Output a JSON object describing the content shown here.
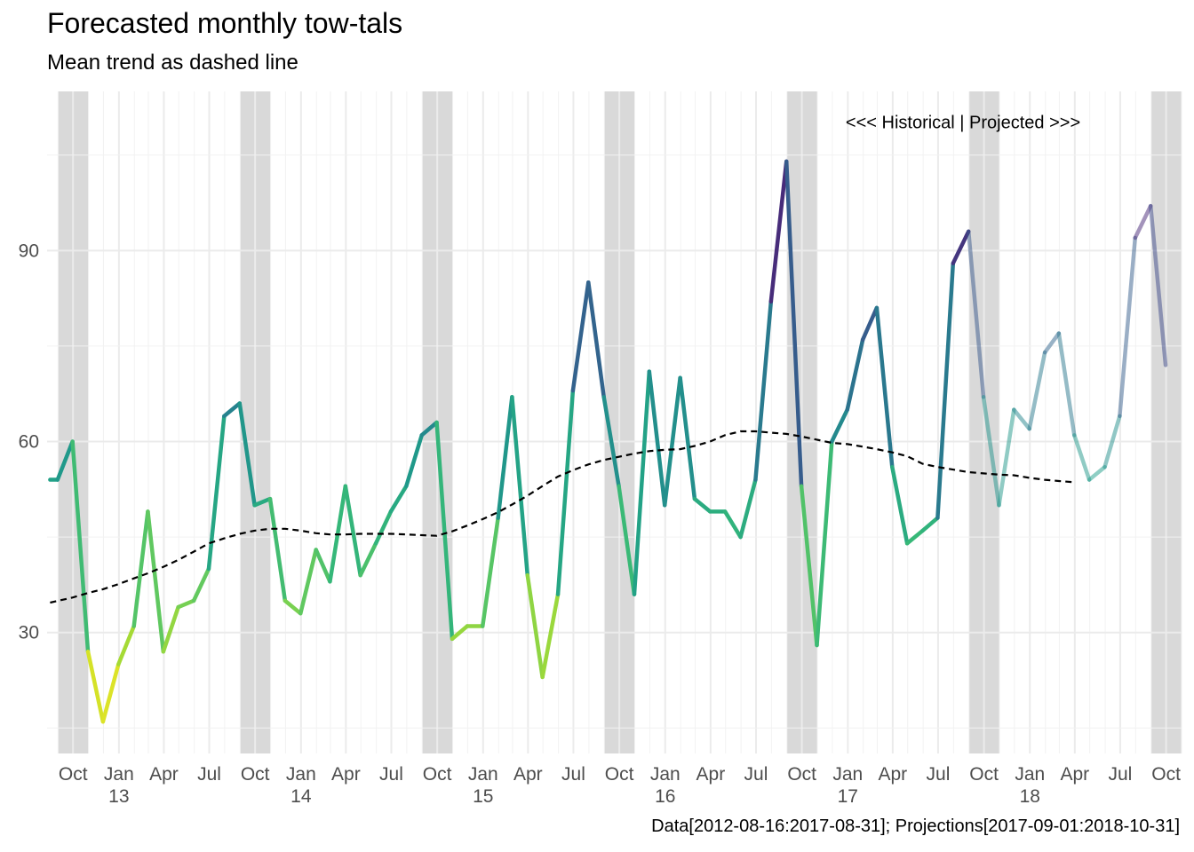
{
  "chart_data": {
    "type": "line",
    "title": "Forecasted monthly tow-tals",
    "subtitle": "Mean trend as dashed line",
    "caption": "Data[2012-08-16:2017-08-31]; Projections[2017-09-01:2018-10-31]",
    "annotation": "<<< Historical | Projected >>>",
    "ylim": [
      11,
      115
    ],
    "y_ticks": [
      30,
      60,
      90
    ],
    "xlim": [
      "2012-08-10",
      "2018-11-01"
    ],
    "x_ticks": [
      {
        "date": "2012-10-01",
        "label": "Oct"
      },
      {
        "date": "2013-01-01",
        "label": "Jan\n13"
      },
      {
        "date": "2013-04-01",
        "label": "Apr"
      },
      {
        "date": "2013-07-01",
        "label": "Jul"
      },
      {
        "date": "2013-10-01",
        "label": "Oct"
      },
      {
        "date": "2014-01-01",
        "label": "Jan\n14"
      },
      {
        "date": "2014-04-01",
        "label": "Apr"
      },
      {
        "date": "2014-07-01",
        "label": "Jul"
      },
      {
        "date": "2014-10-01",
        "label": "Oct"
      },
      {
        "date": "2015-01-01",
        "label": "Jan\n15"
      },
      {
        "date": "2015-04-01",
        "label": "Apr"
      },
      {
        "date": "2015-07-01",
        "label": "Jul"
      },
      {
        "date": "2015-10-01",
        "label": "Oct"
      },
      {
        "date": "2016-01-01",
        "label": "Jan\n16"
      },
      {
        "date": "2016-04-01",
        "label": "Apr"
      },
      {
        "date": "2016-07-01",
        "label": "Jul"
      },
      {
        "date": "2016-10-01",
        "label": "Oct"
      },
      {
        "date": "2017-01-01",
        "label": "Jan\n17"
      },
      {
        "date": "2017-04-01",
        "label": "Apr"
      },
      {
        "date": "2017-07-01",
        "label": "Jul"
      },
      {
        "date": "2017-10-01",
        "label": "Oct"
      },
      {
        "date": "2018-01-01",
        "label": "Jan\n18"
      },
      {
        "date": "2018-04-01",
        "label": "Apr"
      },
      {
        "date": "2018-07-01",
        "label": "Jul"
      },
      {
        "date": "2018-10-01",
        "label": "Oct"
      }
    ],
    "shaded_periods": [
      [
        "2012-09-01",
        "2012-11-01"
      ],
      [
        "2013-09-01",
        "2013-11-01"
      ],
      [
        "2014-09-01",
        "2014-11-01"
      ],
      [
        "2015-09-01",
        "2015-11-01"
      ],
      [
        "2016-09-01",
        "2016-11-01"
      ],
      [
        "2017-09-01",
        "2017-11-01"
      ],
      [
        "2018-09-01",
        "2018-11-01"
      ]
    ],
    "projection_start": "2017-09-01",
    "color_scale": "viridis (high values dark purple, low values yellow)",
    "series": [
      {
        "style": "solid, colored by value",
        "points": [
          [
            "2012-08-16",
            54
          ],
          [
            "2012-08-31",
            54
          ],
          [
            "2012-09-30",
            60
          ],
          [
            "2012-10-31",
            27
          ],
          [
            "2012-11-30",
            16
          ],
          [
            "2012-12-31",
            25
          ],
          [
            "2013-01-31",
            31
          ],
          [
            "2013-02-28",
            49
          ],
          [
            "2013-03-31",
            27
          ],
          [
            "2013-04-30",
            34
          ],
          [
            "2013-05-31",
            35
          ],
          [
            "2013-06-30",
            40
          ],
          [
            "2013-07-31",
            64
          ],
          [
            "2013-08-31",
            66
          ],
          [
            "2013-09-30",
            50
          ],
          [
            "2013-10-31",
            51
          ],
          [
            "2013-11-30",
            35
          ],
          [
            "2013-12-31",
            33
          ],
          [
            "2014-01-31",
            43
          ],
          [
            "2014-02-28",
            38
          ],
          [
            "2014-03-31",
            53
          ],
          [
            "2014-04-30",
            39
          ],
          [
            "2014-05-31",
            44
          ],
          [
            "2014-06-30",
            49
          ],
          [
            "2014-07-31",
            53
          ],
          [
            "2014-08-31",
            61
          ],
          [
            "2014-09-30",
            63
          ],
          [
            "2014-10-31",
            29
          ],
          [
            "2014-11-30",
            31
          ],
          [
            "2014-12-31",
            31
          ],
          [
            "2015-01-31",
            48
          ],
          [
            "2015-02-28",
            67
          ],
          [
            "2015-03-31",
            39
          ],
          [
            "2015-04-30",
            23
          ],
          [
            "2015-05-31",
            36
          ],
          [
            "2015-06-30",
            68
          ],
          [
            "2015-07-31",
            85
          ],
          [
            "2015-08-31",
            67
          ],
          [
            "2015-09-30",
            53
          ],
          [
            "2015-10-31",
            36
          ],
          [
            "2015-11-30",
            71
          ],
          [
            "2015-12-31",
            50
          ],
          [
            "2016-01-31",
            70
          ],
          [
            "2016-02-29",
            51
          ],
          [
            "2016-03-31",
            49
          ],
          [
            "2016-04-30",
            49
          ],
          [
            "2016-05-31",
            45
          ],
          [
            "2016-06-30",
            54
          ],
          [
            "2016-07-31",
            82
          ],
          [
            "2016-08-31",
            104
          ],
          [
            "2016-09-30",
            53
          ],
          [
            "2016-10-31",
            28
          ],
          [
            "2016-11-30",
            60
          ],
          [
            "2016-12-31",
            65
          ],
          [
            "2017-01-31",
            76
          ],
          [
            "2017-02-28",
            81
          ],
          [
            "2017-03-31",
            56
          ],
          [
            "2017-04-30",
            44
          ],
          [
            "2017-05-31",
            46
          ],
          [
            "2017-06-30",
            48
          ],
          [
            "2017-07-31",
            88
          ],
          [
            "2017-08-31",
            93
          ],
          [
            "2017-09-30",
            67
          ],
          [
            "2017-10-31",
            50
          ],
          [
            "2017-11-30",
            65
          ],
          [
            "2017-12-31",
            62
          ],
          [
            "2018-01-31",
            74
          ],
          [
            "2018-02-28",
            77
          ],
          [
            "2018-03-31",
            61
          ],
          [
            "2018-04-30",
            54
          ],
          [
            "2018-05-31",
            56
          ],
          [
            "2018-06-30",
            64
          ],
          [
            "2018-07-31",
            92
          ],
          [
            "2018-08-31",
            97
          ],
          [
            "2018-09-30",
            72
          ]
        ]
      },
      {
        "style": "dashed, black",
        "points": [
          [
            "2012-08-16",
            34.7
          ],
          [
            "2012-09-30",
            35.5
          ],
          [
            "2012-10-31",
            36.2
          ],
          [
            "2012-11-30",
            36.8
          ],
          [
            "2012-12-31",
            37.6
          ],
          [
            "2013-01-31",
            38.5
          ],
          [
            "2013-02-28",
            39.3
          ],
          [
            "2013-03-31",
            40.3
          ],
          [
            "2013-04-30",
            41.4
          ],
          [
            "2013-05-31",
            42.7
          ],
          [
            "2013-06-30",
            44.0
          ],
          [
            "2013-07-31",
            44.8
          ],
          [
            "2013-08-31",
            45.5
          ],
          [
            "2013-09-30",
            46.0
          ],
          [
            "2013-10-31",
            46.3
          ],
          [
            "2013-11-30",
            46.3
          ],
          [
            "2013-12-31",
            46.0
          ],
          [
            "2014-01-31",
            45.6
          ],
          [
            "2014-02-28",
            45.4
          ],
          [
            "2014-03-31",
            45.4
          ],
          [
            "2014-04-30",
            45.5
          ],
          [
            "2014-05-31",
            45.5
          ],
          [
            "2014-06-30",
            45.5
          ],
          [
            "2014-07-31",
            45.4
          ],
          [
            "2014-08-31",
            45.3
          ],
          [
            "2014-09-30",
            45.2
          ],
          [
            "2014-10-31",
            45.9
          ],
          [
            "2014-11-30",
            46.8
          ],
          [
            "2014-12-31",
            47.8
          ],
          [
            "2015-01-31",
            48.9
          ],
          [
            "2015-02-28",
            50.1
          ],
          [
            "2015-03-31",
            51.5
          ],
          [
            "2015-04-30",
            53.0
          ],
          [
            "2015-05-31",
            54.5
          ],
          [
            "2015-06-30",
            55.5
          ],
          [
            "2015-07-31",
            56.4
          ],
          [
            "2015-08-31",
            57.1
          ],
          [
            "2015-09-30",
            57.6
          ],
          [
            "2015-10-31",
            58.1
          ],
          [
            "2015-11-30",
            58.5
          ],
          [
            "2015-12-31",
            58.7
          ],
          [
            "2016-01-31",
            58.8
          ],
          [
            "2016-02-29",
            59.3
          ],
          [
            "2016-03-31",
            60.0
          ],
          [
            "2016-04-30",
            61.0
          ],
          [
            "2016-05-31",
            61.6
          ],
          [
            "2016-06-30",
            61.6
          ],
          [
            "2016-07-31",
            61.4
          ],
          [
            "2016-08-31",
            61.2
          ],
          [
            "2016-09-30",
            60.8
          ],
          [
            "2016-10-31",
            60.3
          ],
          [
            "2016-11-30",
            59.8
          ],
          [
            "2016-12-31",
            59.6
          ],
          [
            "2017-01-31",
            59.2
          ],
          [
            "2017-02-28",
            58.8
          ],
          [
            "2017-03-31",
            58.3
          ],
          [
            "2017-04-30",
            57.7
          ],
          [
            "2017-05-31",
            56.5
          ],
          [
            "2017-06-30",
            56.0
          ],
          [
            "2017-07-31",
            55.6
          ],
          [
            "2017-08-31",
            55.2
          ],
          [
            "2017-09-30",
            55.0
          ],
          [
            "2017-10-31",
            54.8
          ],
          [
            "2017-11-30",
            54.7
          ],
          [
            "2017-12-31",
            54.3
          ],
          [
            "2018-01-31",
            54.0
          ],
          [
            "2018-02-28",
            53.8
          ],
          [
            "2018-03-31",
            53.6
          ]
        ]
      }
    ]
  },
  "colors": {
    "panel_background": "#ffffff",
    "grid_major": "#ebebeb",
    "grid_minor": "#f2f2f2",
    "shade": "#d9d9d9",
    "tick_text": "#4d4d4d",
    "trend_line": "#000000"
  }
}
